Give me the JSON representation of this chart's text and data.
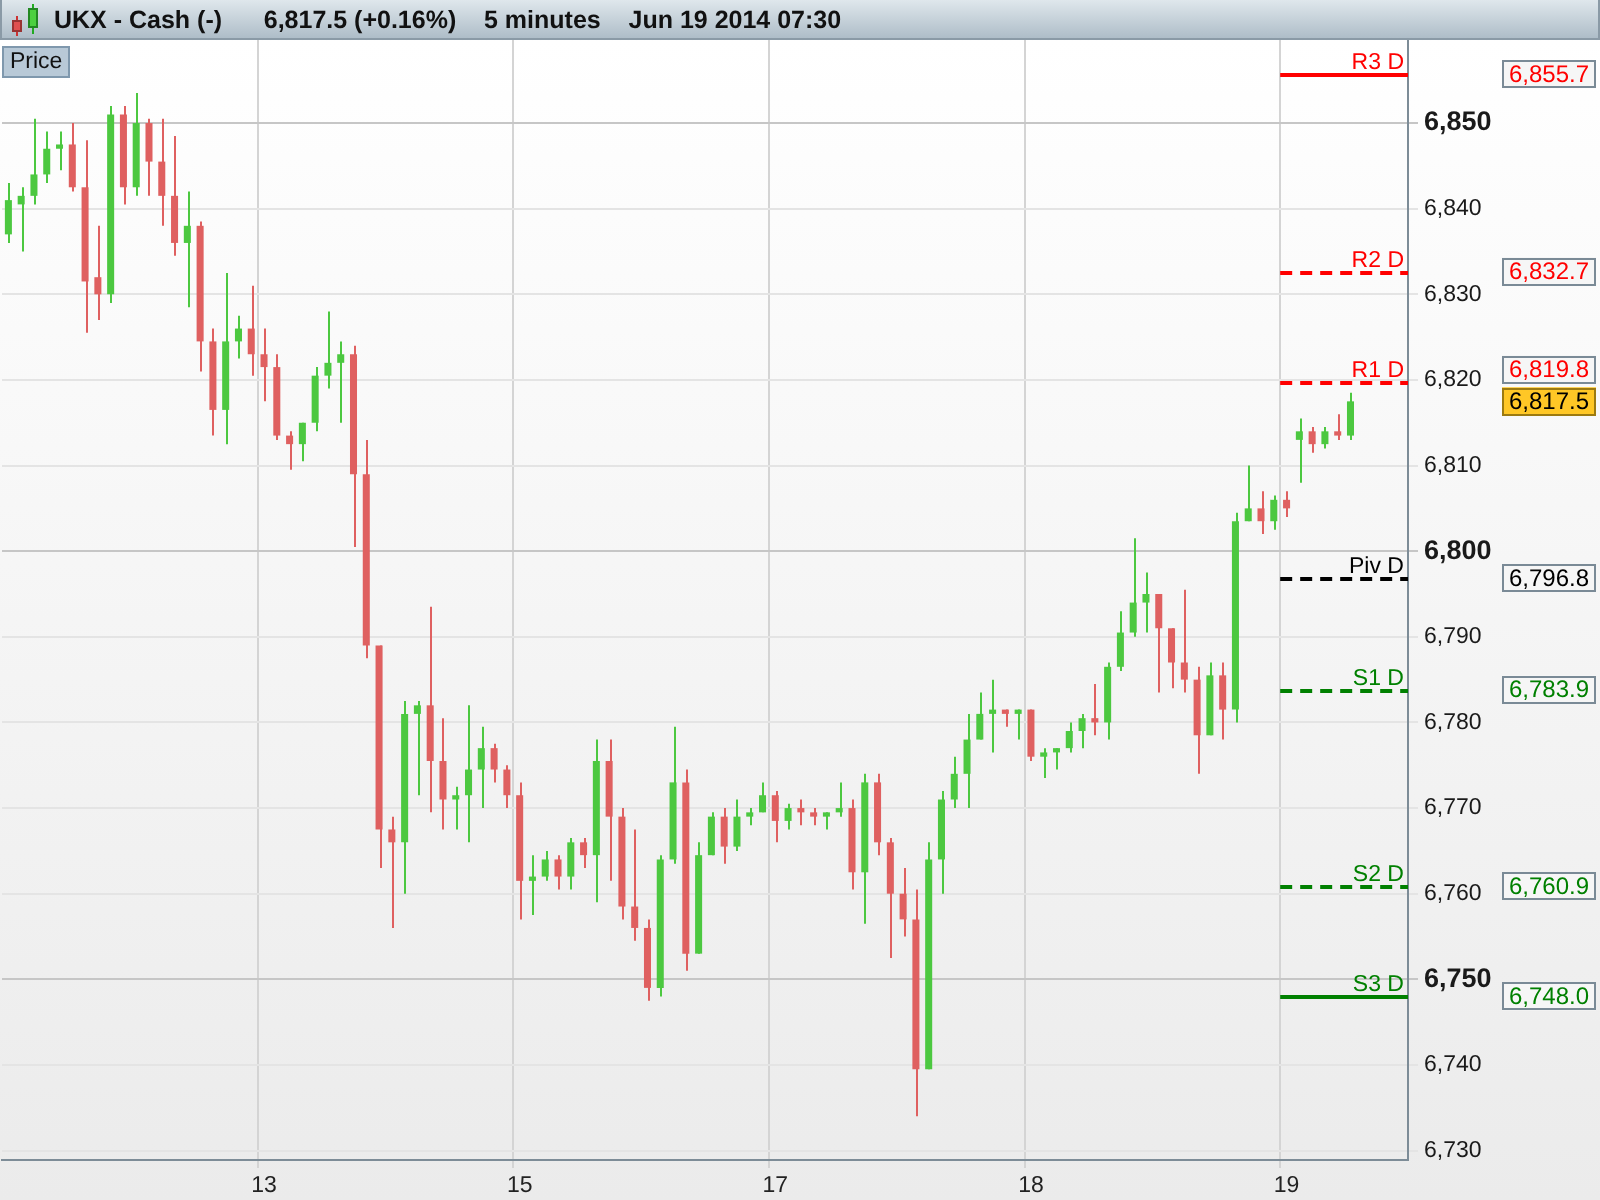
{
  "chart_data": {
    "type": "candlestick",
    "title": "UKX - Cash (-)",
    "subtitle": "6,817.5 (+0.16%)    5 minutes    Jun 19 2014 07:30",
    "categories": [
      null,
      null,
      null,
      null,
      null,
      null,
      null,
      null,
      null,
      null,
      null,
      null,
      null,
      null,
      null,
      null,
      null,
      null,
      null,
      null,
      "13",
      null,
      null,
      null,
      null,
      null,
      null,
      null,
      null,
      null,
      null,
      null,
      null,
      null,
      null,
      null,
      null,
      null,
      null,
      null,
      "15",
      null,
      null,
      null,
      null,
      null,
      null,
      null,
      null,
      null,
      null,
      null,
      null,
      null,
      null,
      null,
      null,
      null,
      null,
      null,
      "17",
      null,
      null,
      null,
      null,
      null,
      null,
      null,
      null,
      null,
      null,
      null,
      null,
      null,
      null,
      null,
      null,
      null,
      null,
      null,
      "18",
      null,
      null,
      null,
      null,
      null,
      null,
      null,
      null,
      null,
      null,
      null,
      null,
      null,
      null,
      null,
      null,
      null,
      null,
      null,
      "19",
      null,
      null,
      null,
      null,
      null,
      null,
      null,
      null,
      null
    ],
    "ohlc": [
      [
        6837,
        6843,
        6836,
        6841
      ],
      [
        6840.5,
        6842.5,
        6835,
        6841.5
      ],
      [
        6841.5,
        6850.5,
        6840.5,
        6844
      ],
      [
        6844,
        6849,
        6843,
        6847
      ],
      [
        6847,
        6849,
        6844.5,
        6847.5
      ],
      [
        6847.5,
        6850,
        6842,
        6842.5
      ],
      [
        6842.5,
        6848,
        6825.5,
        6831.5
      ],
      [
        6832,
        6838,
        6827,
        6830
      ],
      [
        6830,
        6852,
        6829,
        6851
      ],
      [
        6851,
        6852,
        6840.5,
        6842.5
      ],
      [
        6842.5,
        6853.5,
        6841.5,
        6850
      ],
      [
        6850,
        6850.5,
        6841.5,
        6845.5
      ],
      [
        6845.5,
        6850.5,
        6838,
        6841.5
      ],
      [
        6841.5,
        6848.5,
        6834.5,
        6836
      ],
      [
        6836,
        6842,
        6828.5,
        6838
      ],
      [
        6838,
        6838.5,
        6821,
        6824.5
      ],
      [
        6824.5,
        6826,
        6813.5,
        6816.5
      ],
      [
        6816.5,
        6832.5,
        6812.5,
        6824.5
      ],
      [
        6824.5,
        6827.5,
        6822.5,
        6826
      ],
      [
        6826,
        6831,
        6820.5,
        6823
      ],
      [
        6823,
        6826,
        6817.5,
        6821.5
      ],
      [
        6821.5,
        6823,
        6813,
        6813.5
      ],
      [
        6813.5,
        6814,
        6809.5,
        6812.5
      ],
      [
        6812.5,
        6815,
        6810.5,
        6815
      ],
      [
        6815,
        6821.5,
        6814,
        6820.5
      ],
      [
        6820.5,
        6828,
        6819,
        6822
      ],
      [
        6822,
        6824.5,
        6815,
        6823
      ],
      [
        6823,
        6824,
        6800.5,
        6809
      ],
      [
        6809,
        6813,
        6787.5,
        6789
      ],
      [
        6789,
        6789,
        6763,
        6767.5
      ],
      [
        6767.5,
        6769,
        6756,
        6766
      ],
      [
        6766,
        6782.5,
        6760,
        6781
      ],
      [
        6781,
        6782.5,
        6771.5,
        6782
      ],
      [
        6782,
        6793.5,
        6769.5,
        6775.5
      ],
      [
        6775.5,
        6780.5,
        6767.5,
        6771
      ],
      [
        6771,
        6772.5,
        6767.5,
        6771.5
      ],
      [
        6771.5,
        6782,
        6766,
        6774.5
      ],
      [
        6774.5,
        6779.5,
        6770,
        6777
      ],
      [
        6777,
        6777.5,
        6773,
        6774.5
      ],
      [
        6774.5,
        6775,
        6770,
        6771.5
      ],
      [
        6771.5,
        6773,
        6757,
        6761.5
      ],
      [
        6761.5,
        6764.5,
        6757.5,
        6762
      ],
      [
        6762,
        6765,
        6761.5,
        6764
      ],
      [
        6764,
        6764.5,
        6760.5,
        6762
      ],
      [
        6762,
        6766.5,
        6760.5,
        6766
      ],
      [
        6766,
        6766.5,
        6763,
        6764.5
      ],
      [
        6764.5,
        6778,
        6759,
        6775.5
      ],
      [
        6775.5,
        6778,
        6761.5,
        6769
      ],
      [
        6769,
        6770,
        6757,
        6758.5
      ],
      [
        6758.5,
        6767.5,
        6754.5,
        6756
      ],
      [
        6756,
        6757,
        6747.5,
        6749
      ],
      [
        6749,
        6764.5,
        6748,
        6764
      ],
      [
        6764,
        6779.5,
        6763.5,
        6773
      ],
      [
        6773,
        6774.5,
        6751,
        6753
      ],
      [
        6753,
        6766,
        6753,
        6764.5
      ],
      [
        6764.5,
        6769.5,
        6764.5,
        6769
      ],
      [
        6769,
        6770,
        6763.5,
        6765.5
      ],
      [
        6765.5,
        6771,
        6765,
        6769
      ],
      [
        6769,
        6770,
        6768,
        6769.5
      ],
      [
        6769.5,
        6773,
        6769.5,
        6771.5
      ],
      [
        6771.5,
        6772,
        6766,
        6768.5
      ],
      [
        6768.5,
        6770.5,
        6767.5,
        6770
      ],
      [
        6770,
        6771,
        6768,
        6769.5
      ],
      [
        6769.5,
        6770,
        6768,
        6769
      ],
      [
        6769,
        6769.5,
        6767.5,
        6769.5
      ],
      [
        6769.5,
        6773,
        6769,
        6770
      ],
      [
        6770,
        6771,
        6760.5,
        6762.5
      ],
      [
        6762.5,
        6774,
        6756.5,
        6773
      ],
      [
        6773,
        6774,
        6764.5,
        6766
      ],
      [
        6766,
        6766.5,
        6752.5,
        6760
      ],
      [
        6760,
        6763,
        6755,
        6757
      ],
      [
        6757,
        6760.5,
        6734,
        6739.5
      ],
      [
        6739.5,
        6766,
        6739.5,
        6764
      ],
      [
        6764,
        6772,
        6760,
        6771
      ],
      [
        6771,
        6776,
        6770,
        6774
      ],
      [
        6774,
        6781,
        6770,
        6778
      ],
      [
        6778,
        6783.5,
        6778,
        6781
      ],
      [
        6781,
        6785,
        6776.5,
        6781.5
      ],
      [
        6781.5,
        6781.5,
        6779.5,
        6781
      ],
      [
        6781,
        6781.5,
        6778,
        6781.5
      ],
      [
        6781.5,
        6781.5,
        6775.5,
        6776
      ],
      [
        6776,
        6777,
        6773.5,
        6776.5
      ],
      [
        6776.5,
        6777,
        6774.5,
        6777
      ],
      [
        6777,
        6780,
        6776.5,
        6779
      ],
      [
        6779,
        6781,
        6777,
        6780.5
      ],
      [
        6780.5,
        6784.5,
        6778.5,
        6780
      ],
      [
        6780,
        6787,
        6778,
        6786.5
      ],
      [
        6786.5,
        6793,
        6786,
        6790.5
      ],
      [
        6790.5,
        6801.5,
        6790,
        6794
      ],
      [
        6794,
        6797.5,
        6790.5,
        6795
      ],
      [
        6795,
        6795,
        6783.5,
        6791
      ],
      [
        6791,
        6791,
        6784,
        6787
      ],
      [
        6787,
        6795.5,
        6783.5,
        6785
      ],
      [
        6785,
        6786.5,
        6774,
        6778.5
      ],
      [
        6778.5,
        6787,
        6778.5,
        6785.5
      ],
      [
        6785.5,
        6787,
        6778,
        6781.5
      ],
      [
        6781.5,
        6804.5,
        6780,
        6803.5
      ],
      [
        6803.5,
        6810,
        6803.5,
        6805
      ],
      [
        6805,
        6807,
        6802,
        6803.5
      ],
      [
        6803.5,
        6806.5,
        6802.5,
        6806
      ],
      [
        6806,
        6807,
        6804,
        6805
      ],
      [
        6813,
        6815.5,
        6808,
        6814
      ],
      [
        6814,
        6814.5,
        6811.5,
        6812.5
      ],
      [
        6812.5,
        6814.5,
        6812,
        6814
      ],
      [
        6814,
        6816,
        6813,
        6813.5
      ],
      [
        6813.5,
        6818.5,
        6813,
        6817.5
      ],
      null,
      null,
      null,
      null
    ],
    "colors": [
      "#4cc840",
      "#4cc840",
      "#4cc840",
      "#4cc840",
      "#4cc840",
      "#df6060",
      "#df6060",
      "#df6060",
      "#4cc840",
      "#df6060",
      "#4cc840",
      "#df6060",
      "#df6060",
      "#df6060",
      "#4cc840",
      "#df6060",
      "#df6060",
      "#4cc840",
      "#4cc840",
      "#df6060",
      "#df6060",
      "#df6060",
      "#df6060",
      "#4cc840",
      "#4cc840",
      "#4cc840",
      "#4cc840",
      "#df6060",
      "#df6060",
      "#df6060",
      "#df6060",
      "#4cc840",
      "#4cc840",
      "#df6060",
      "#df6060",
      "#4cc840",
      "#4cc840",
      "#4cc840",
      "#df6060",
      "#df6060",
      "#df6060",
      "#4cc840",
      "#4cc840",
      "#df6060",
      "#4cc840",
      "#df6060",
      "#4cc840",
      "#df6060",
      "#df6060",
      "#df6060",
      "#df6060",
      "#4cc840",
      "#4cc840",
      "#df6060",
      "#4cc840",
      "#4cc840",
      "#df6060",
      "#4cc840",
      "#4cc840",
      "#4cc840",
      "#df6060",
      "#4cc840",
      "#df6060",
      "#df6060",
      "#4cc840",
      "#4cc840",
      "#df6060",
      "#4cc840",
      "#df6060",
      "#df6060",
      "#df6060",
      "#df6060",
      "#4cc840",
      "#4cc840",
      "#4cc840",
      "#4cc840",
      "#4cc840",
      "#4cc840",
      "#df6060",
      "#4cc840",
      "#df6060",
      "#4cc840",
      "#4cc840",
      "#4cc840",
      "#4cc840",
      "#df6060",
      "#4cc840",
      "#4cc840",
      "#4cc840",
      "#4cc840",
      "#df6060",
      "#df6060",
      "#df6060",
      "#df6060",
      "#4cc840",
      "#df6060",
      "#4cc840",
      "#4cc840",
      "#df6060",
      "#4cc840",
      "#df6060",
      "#4cc840",
      "#df6060",
      "#4cc840",
      "#df6060",
      "#4cc840",
      null,
      null,
      null,
      null
    ],
    "ylim": [
      6728.9,
      6859.7
    ],
    "yticks": [
      {
        "value": 6730,
        "label": "6,730"
      },
      {
        "value": 6740,
        "label": "6,740"
      },
      {
        "value": 6750,
        "label": "6,750"
      },
      {
        "value": 6760,
        "label": "6,760"
      },
      {
        "value": 6770,
        "label": "6,770"
      },
      {
        "value": 6780,
        "label": "6,780"
      },
      {
        "value": 6790,
        "label": "6,790"
      },
      {
        "value": 6800,
        "label": "6,800"
      },
      {
        "value": 6810,
        "label": "6,810"
      },
      {
        "value": 6820,
        "label": "6,820"
      },
      {
        "value": 6830,
        "label": "6,830"
      },
      {
        "value": 6840,
        "label": "6,840"
      },
      {
        "value": 6850,
        "label": "6,850"
      }
    ],
    "grid": true,
    "ref_lines": [
      {
        "axis": "y",
        "value": 6855.7,
        "label": "R3 D",
        "color": "#ff0000",
        "line_style": "solid"
      },
      {
        "axis": "y",
        "value": 6832.7,
        "label": "R2 D",
        "color": "#ff0000",
        "line_style": "dashed"
      },
      {
        "axis": "y",
        "value": 6819.8,
        "label": "R1 D",
        "color": "#ff0000",
        "line_style": "dashed"
      },
      {
        "axis": "y",
        "value": 6796.8,
        "label": "Piv D",
        "color": "#000000",
        "line_style": "dashed"
      },
      {
        "axis": "y",
        "value": 6783.9,
        "label": "S1 D",
        "color": "#008000",
        "line_style": "dashed"
      },
      {
        "axis": "y",
        "value": 6760.9,
        "label": "S2 D",
        "color": "#008000",
        "line_style": "dashed"
      },
      {
        "axis": "y",
        "value": 6748,
        "label": "S3 D",
        "color": "#008000",
        "line_style": "solid"
      }
    ],
    "annotations": [
      "Price",
      "6,817.5",
      "6,855.7",
      "6,832.7",
      "6,819.8",
      "6,796.8",
      "6,783.9",
      "6,760.9",
      "6,748.0"
    ]
  }
}
